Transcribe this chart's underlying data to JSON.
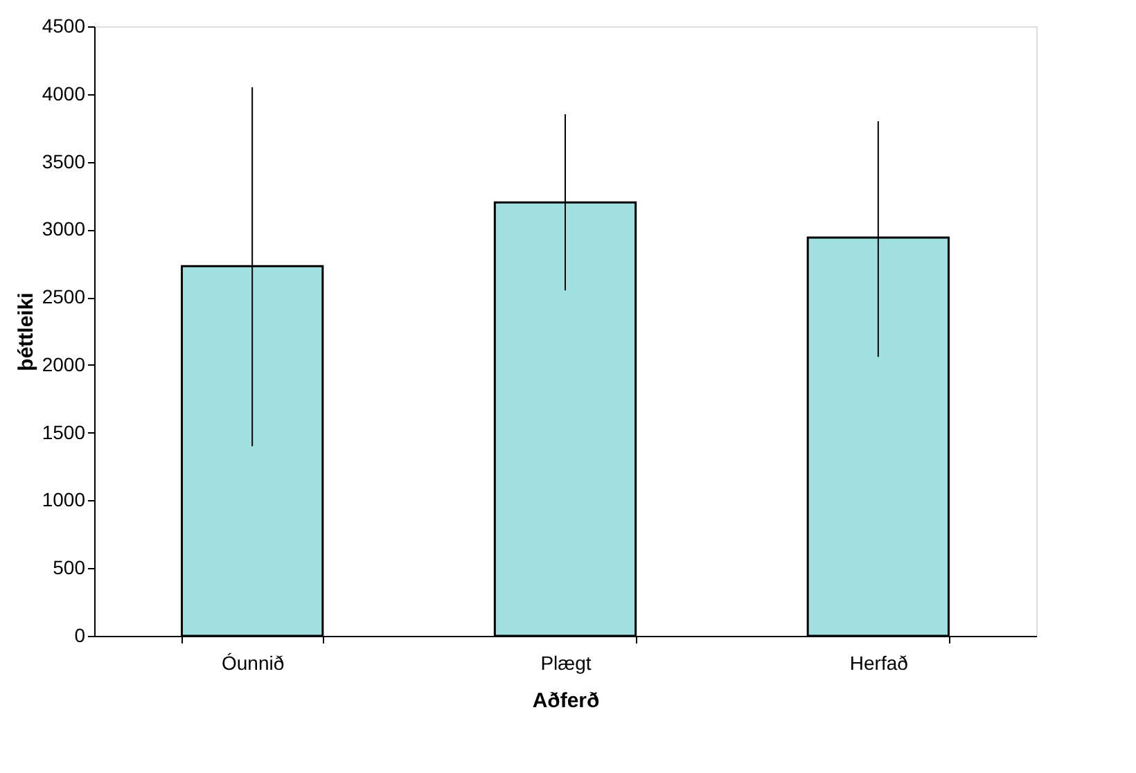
{
  "chart_data": {
    "type": "bar",
    "xlabel": "Aðferð",
    "ylabel": "þéttleiki",
    "categories": [
      "Óunnið",
      "Plægt",
      "Herfað"
    ],
    "series": [
      {
        "color": "#a0e0e0",
        "values": [
          2730,
          3200,
          2940
        ],
        "errors": [
          [
            1400,
            4050
          ],
          [
            2550,
            3850
          ],
          [
            2060,
            3800
          ]
        ]
      }
    ],
    "ylim": [
      0,
      4500
    ],
    "yticks": [
      0,
      500,
      1000,
      1500,
      2000,
      2500,
      3000,
      3500,
      4000,
      4500
    ],
    "grid": false
  }
}
